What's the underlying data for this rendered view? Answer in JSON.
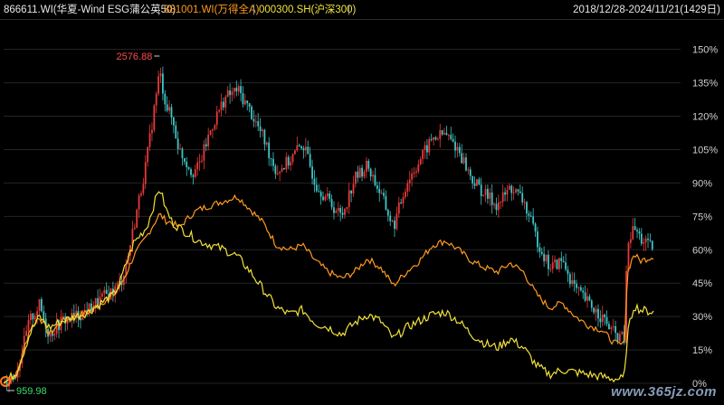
{
  "header": {
    "series_a_label": "866611.WI(华夏-Wind ESG蒲公英50)",
    "separator": "|",
    "series_b_label": "881001.WI(万得全A)",
    "series_c_label": "000300.SH(沪深300)",
    "date_range": "2018/12/28-2024/11/21(1429日)"
  },
  "watermark": "www.365jz.com",
  "chart_data": {
    "type": "line",
    "x_range": [
      "2018/12/28",
      "2024/11/21"
    ],
    "ylim": [
      0,
      160
    ],
    "y_ticks": [
      "0%",
      "15%",
      "30%",
      "45%",
      "60%",
      "75%",
      "90%",
      "105%",
      "120%",
      "135%",
      "150%"
    ],
    "annotations": {
      "max_label": "2576.88",
      "min_label": "959.98"
    },
    "colors": {
      "background": "#000000",
      "candle_up": "#e83a3a",
      "candle_down": "#3fc6c6",
      "series_b": "#ff9a1e",
      "series_c": "#f2e23a",
      "grid": "#242424"
    },
    "series": [
      {
        "name": "866611.WI(华夏-Wind ESG蒲公英50)",
        "type": "candlestick",
        "t": [
          0.0,
          0.02,
          0.04,
          0.055,
          0.07,
          0.09,
          0.11,
          0.13,
          0.15,
          0.17,
          0.18,
          0.19,
          0.2,
          0.22,
          0.24,
          0.25,
          0.26,
          0.27,
          0.28,
          0.29,
          0.3,
          0.32,
          0.34,
          0.36,
          0.38,
          0.4,
          0.42,
          0.44,
          0.46,
          0.48,
          0.5,
          0.52,
          0.54,
          0.56,
          0.58,
          0.6,
          0.62,
          0.64,
          0.66,
          0.68,
          0.7,
          0.72,
          0.74,
          0.76,
          0.78,
          0.8,
          0.82,
          0.84,
          0.86,
          0.88,
          0.9,
          0.92,
          0.94,
          0.955,
          0.96,
          0.97,
          0.98,
          1.0
        ],
        "values": [
          0,
          5,
          28,
          35,
          22,
          28,
          30,
          33,
          38,
          42,
          45,
          55,
          70,
          100,
          140,
          125,
          118,
          105,
          100,
          95,
          97,
          115,
          128,
          132,
          122,
          110,
          95,
          100,
          108,
          90,
          82,
          75,
          92,
          98,
          85,
          70,
          90,
          100,
          110,
          112,
          105,
          92,
          85,
          80,
          88,
          82,
          65,
          52,
          55,
          42,
          36,
          30,
          22,
          20,
          62,
          70,
          65,
          60
        ]
      },
      {
        "name": "881001.WI(万得全A)",
        "values": [
          0,
          4,
          24,
          30,
          22,
          28,
          30,
          32,
          36,
          40,
          44,
          50,
          57,
          66,
          76,
          73,
          72,
          70,
          73,
          76,
          78,
          80,
          82,
          84,
          78,
          72,
          62,
          60,
          62,
          55,
          50,
          47,
          50,
          56,
          52,
          44,
          50,
          55,
          62,
          64,
          60,
          55,
          52,
          50,
          54,
          50,
          40,
          34,
          36,
          30,
          26,
          24,
          18,
          17,
          50,
          58,
          55,
          57
        ]
      },
      {
        "name": "000300.SH(沪深300)",
        "values": [
          0,
          5,
          22,
          30,
          25,
          28,
          30,
          32,
          36,
          40,
          46,
          55,
          63,
          70,
          88,
          78,
          72,
          70,
          68,
          66,
          64,
          62,
          60,
          57,
          50,
          42,
          34,
          31,
          33,
          27,
          25,
          22,
          27,
          31,
          28,
          20,
          25,
          28,
          31,
          32,
          28,
          22,
          18,
          16,
          20,
          16,
          8,
          4,
          6,
          5,
          4,
          3,
          2,
          2,
          22,
          35,
          33,
          32
        ]
      }
    ]
  }
}
